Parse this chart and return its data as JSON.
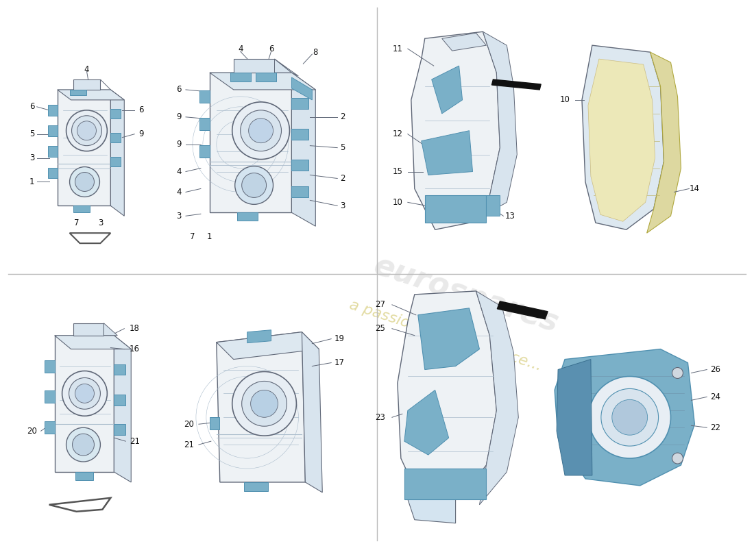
{
  "bg_color": "#ffffff",
  "outline": "#606878",
  "outline_thin": "#8090a0",
  "blue_pad": "#7ab0c8",
  "blue_pad_dark": "#5090b0",
  "blue_panel": "#90b8cc",
  "body_fill": "#eef2f5",
  "body_fill2": "#e8eef4",
  "body_dark": "#d8e4ee",
  "top_fill": "#dde8f0",
  "detail_line": "#aabccc",
  "yellow_fill": "#ddd8a0",
  "yellow_outline": "#b0a840",
  "yellow_line": "#c0b870",
  "label_color": "#111111",
  "label_fs": 8.5,
  "watermark_text_color": "#c8c8c8",
  "watermark_sub_color": "#c8b840",
  "divider_color": "#bbbbbb"
}
